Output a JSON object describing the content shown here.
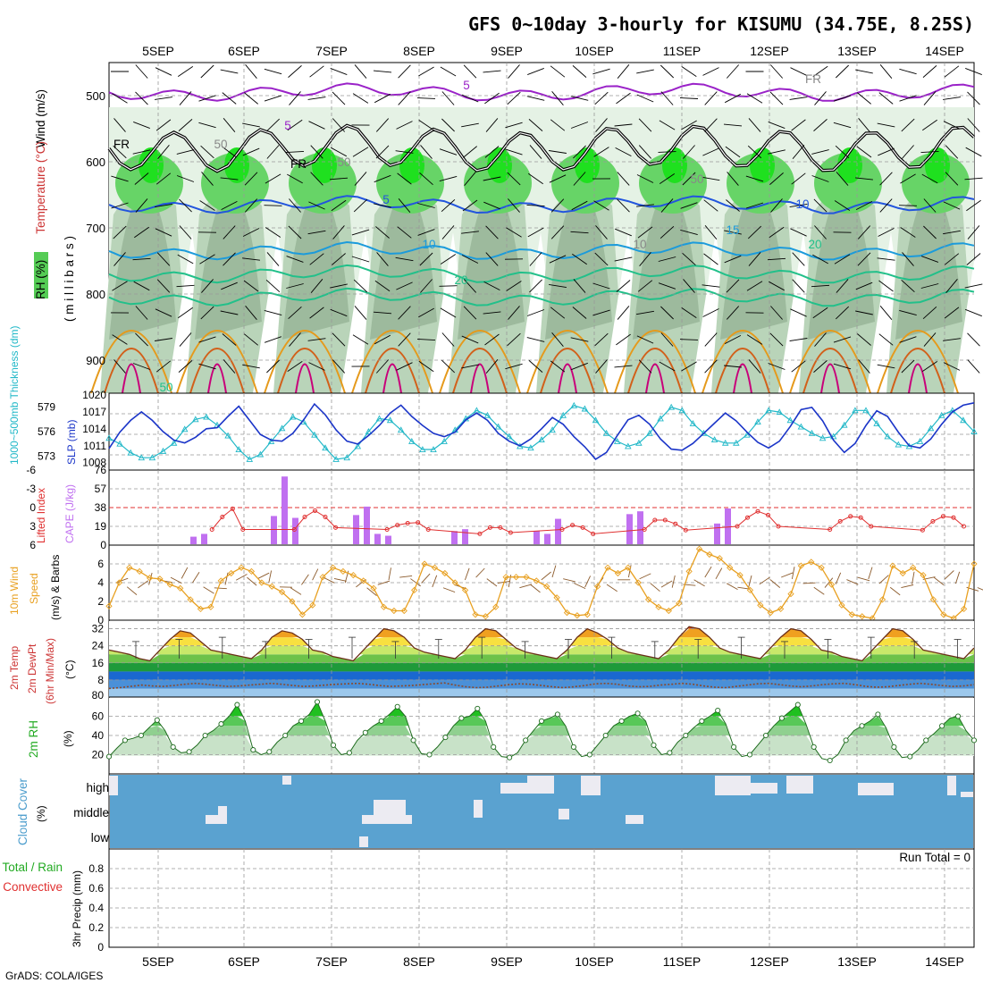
{
  "title": "GFS 0~10day 3-hourly for KISUMU (34.75E, 8.25S)",
  "credit": "GrADS: COLA/IGES",
  "colors": {
    "rh_light": "#e5f2e5",
    "rh_mid": "#b9d4b9",
    "rh_dark": "#8aa88a",
    "rh_green": "#67d467",
    "rh_bright": "#1fe01f",
    "temp_purple": "#9a22c8",
    "temp_blue": "#2255dd",
    "temp_lightblue": "#1c9bdb",
    "temp_teal": "#22c08a",
    "temp_orange": "#e59a1c",
    "temp_dark_orange": "#d2601a",
    "temp_magenta": "#c8007a",
    "freezing": "#000000",
    "thickness": "#22b8c8",
    "slp": "#1b35c8",
    "lifted_index": "#e03030",
    "cape": "#c070f0",
    "wind_speed": "#e8a020",
    "wind_barb": "#8b5a2b",
    "temp_line": "#6b2f18",
    "dewpt_line": "#8b4a2b",
    "cloud": "#5aa2d0",
    "clear_sky": "#ecebf2",
    "precip_total": "#22aa22",
    "precip_convective": "#e03030"
  },
  "time_axis": {
    "dates": [
      "5SEP",
      "6SEP",
      "7SEP",
      "8SEP",
      "9SEP",
      "10SEP",
      "11SEP",
      "12SEP",
      "13SEP",
      "14SEP"
    ]
  },
  "panels": {
    "upper_air": {
      "label_wind": "Wind (m/s)",
      "label_temperature": "Temperature (°C)",
      "label_rh": "RH (%)",
      "label_pressure": "( m i l l i b a r s )",
      "contour_labels": [
        "5",
        "5",
        "5",
        "10",
        "10",
        "15",
        "20",
        "20",
        "50",
        "50",
        "50",
        "50",
        "10",
        "FR",
        "FR",
        "FR"
      ]
    },
    "thickness_slp": {
      "label_thickness": "1000~500mb Thickness (dm)",
      "label_slp": "SLP (mb)"
    },
    "instability": {
      "label_li": "Lifted Index",
      "label_cape": "CAPE (J/kg)"
    },
    "wind10m": {
      "label_line1": "10m Wind",
      "label_line2": "Speed",
      "label_line3": "(m/s) & Barbs"
    },
    "temperature": {
      "label_line1": "2m Temp",
      "label_line2": "2m DewPt",
      "label_line3": "(6hr Min/Max)",
      "unit": "(°C)"
    },
    "rh2m": {
      "label": "2m RH",
      "unit": "(%)"
    },
    "cloud": {
      "label": "Cloud Cover",
      "unit": "(%)",
      "levels": [
        "high",
        "middle",
        "low"
      ]
    },
    "precip": {
      "label_total": "Total / Rain",
      "label_convective": "Convective",
      "label_axis": "3hr Precip (mm)",
      "run_total": "Run Total = 0"
    }
  },
  "chart_data": [
    {
      "type": "contour",
      "panel": "upper_air",
      "ylabel": "(millibars)",
      "y_ticks": [
        500,
        600,
        700,
        800,
        900
      ],
      "ylim": [
        450,
        950
      ],
      "contours": [
        {
          "field": "temperature",
          "level": -5,
          "mean_pressure": 495
        },
        {
          "field": "temperature",
          "level": 0,
          "mean_pressure": 580
        },
        {
          "field": "temperature",
          "level": 5,
          "mean_pressure": 665
        },
        {
          "field": "temperature",
          "level": 10,
          "mean_pressure": 735
        },
        {
          "field": "temperature",
          "level": 15,
          "mean_pressure": 770
        },
        {
          "field": "temperature",
          "level": 20,
          "mean_pressure": 805
        }
      ]
    },
    {
      "type": "line",
      "panel": "thickness_slp",
      "series": [
        {
          "name": "1000~500mb Thickness (dm)",
          "axis": "left",
          "y_ticks": [
            573,
            576,
            579
          ],
          "values": [
            575.2,
            574.5,
            573.4,
            572.8,
            572.8,
            573.6,
            574.6,
            576.3,
            577.5,
            577.8,
            576.8,
            575.5,
            573.8,
            572.6,
            573.2,
            574.8,
            576.4,
            577.8,
            577.2,
            575.6,
            574.0,
            572.6,
            572.8,
            574.2,
            576.0,
            577.6,
            577.4,
            576.2,
            574.8,
            573.8,
            573.8,
            574.8,
            576.2,
            577.6,
            578.6,
            578.0,
            576.6,
            575.4,
            574.2,
            574.0,
            575.0,
            576.2,
            578.0,
            579.2,
            578.8,
            577.4,
            575.8,
            574.8,
            574.2,
            574.6,
            575.8,
            577.6,
            579.0,
            578.6,
            577.0,
            575.8,
            575.0,
            574.6,
            574.6,
            575.6,
            577.2,
            578.6,
            578.4,
            577.4,
            576.6,
            575.8,
            575.2,
            575.4,
            576.8,
            578.6,
            578.6,
            577.0,
            575.4,
            574.4,
            574.2,
            574.8,
            576.4,
            578.0,
            578.6,
            577.4,
            576.0
          ]
        },
        {
          "name": "SLP (mb)",
          "axis": "right",
          "y_ticks": [
            1008,
            1011,
            1014,
            1017,
            1020
          ],
          "values": [
            1010.5,
            1013.4,
            1015.5,
            1017.0,
            1015.5,
            1013.5,
            1012.0,
            1011.5,
            1012.5,
            1014.0,
            1014.2,
            1016.2,
            1018.0,
            1015.5,
            1013.0,
            1012.0,
            1011.8,
            1013.2,
            1015.6,
            1018.4,
            1016.5,
            1013.8,
            1011.8,
            1011.3,
            1012.8,
            1014.6,
            1016.8,
            1018.2,
            1016.2,
            1014.6,
            1013.2,
            1012.6,
            1013.4,
            1015.6,
            1016.8,
            1015.5,
            1013.2,
            1011.8,
            1011.0,
            1012.2,
            1014.0,
            1016.0,
            1014.8,
            1012.6,
            1010.8,
            1008.6,
            1009.8,
            1012.8,
            1015.6,
            1016.4,
            1014.8,
            1012.2,
            1010.4,
            1010.2,
            1011.4,
            1013.2,
            1015.0,
            1016.8,
            1015.4,
            1013.4,
            1011.6,
            1010.6,
            1011.8,
            1014.4,
            1017.4,
            1017.8,
            1015.4,
            1012.0,
            1009.8,
            1011.4,
            1014.6,
            1017.2,
            1016.2,
            1013.4,
            1011.0,
            1010.6,
            1012.2,
            1014.8,
            1017.0,
            1018.2,
            1018.6
          ]
        }
      ]
    },
    {
      "type": "bar+line",
      "panel": "instability",
      "series": [
        {
          "name": "Lifted Index",
          "axis": "left",
          "y_ticks": [
            -6,
            -3,
            0,
            3,
            6
          ],
          "values": [
            null,
            null,
            null,
            null,
            null,
            null,
            null,
            null,
            null,
            null,
            3.5,
            1.5,
            0.2,
            3.5,
            null,
            null,
            null,
            null,
            3.5,
            1.5,
            0.5,
            1.5,
            3.2,
            null,
            null,
            null,
            null,
            3.5,
            2.8,
            2.5,
            2.4,
            3.5,
            null,
            null,
            null,
            null,
            4.2,
            3.2,
            3.2,
            4.0,
            null,
            null,
            null,
            null,
            3.5,
            2.8,
            3.2,
            4.2,
            null,
            null,
            null,
            null,
            3.5,
            2.0,
            2.0,
            2.6,
            3.6,
            null,
            null,
            null,
            null,
            3.0,
            1.6,
            0.6,
            1.2,
            3.0,
            null,
            null,
            null,
            null,
            3.5,
            2.2,
            1.4,
            1.6,
            3.0,
            null,
            null,
            null,
            null,
            3.6,
            2.2,
            1.4,
            1.6,
            3.0,
            null
          ]
        },
        {
          "name": "CAPE (J/kg)",
          "axis": "right",
          "y_ticks": [
            0,
            19,
            38,
            57,
            76
          ],
          "bars": [
            {
              "day": "5SEP",
              "values": [
                8,
                11
              ]
            },
            {
              "day": "6SEP",
              "values": [
                30,
                72,
                28
              ]
            },
            {
              "day": "7SEP",
              "values": [
                31,
                40,
                11,
                9
              ]
            },
            {
              "day": "8SEP",
              "values": [
                14,
                16
              ]
            },
            {
              "day": "9SEP",
              "values": [
                14,
                11,
                27
              ]
            },
            {
              "day": "10SEP",
              "values": [
                32,
                35
              ]
            },
            {
              "day": "11SEP",
              "values": [
                22,
                38
              ]
            }
          ]
        }
      ]
    },
    {
      "type": "line",
      "panel": "wind10m",
      "y_ticks": [
        0,
        2,
        4,
        6
      ],
      "values": [
        1.5,
        4.0,
        5.6,
        5.2,
        4.5,
        4.4,
        3.8,
        3.4,
        2.2,
        1.2,
        1.4,
        4.2,
        5.0,
        5.6,
        5.2,
        4.0,
        3.6,
        3.0,
        2.0,
        0.6,
        1.6,
        4.6,
        5.6,
        5.2,
        4.8,
        4.2,
        3.4,
        1.4,
        1.0,
        1.0,
        3.2,
        6.0,
        5.6,
        5.0,
        4.0,
        3.2,
        0.6,
        0.4,
        1.4,
        4.6,
        4.6,
        4.6,
        4.2,
        3.6,
        2.4,
        0.8,
        0.5,
        0.6,
        3.6,
        5.6,
        5.0,
        5.6,
        4.0,
        2.2,
        1.4,
        1.0,
        1.8,
        5.2,
        7.6,
        7.0,
        6.6,
        5.6,
        4.8,
        3.2,
        1.6,
        0.8,
        1.2,
        2.8,
        5.8,
        6.2,
        5.6,
        3.8,
        1.6,
        0.6,
        0.4,
        0.2,
        2.2,
        5.8,
        5.0,
        5.6,
        4.8,
        2.2,
        0.6,
        0.2,
        1.2,
        6.0
      ]
    },
    {
      "type": "area",
      "panel": "temperature",
      "ylabel": "(°C)",
      "y_ticks": [
        8,
        16,
        24,
        32
      ],
      "series": [
        {
          "name": "2m Temp",
          "values": [
            22,
            21,
            20,
            18,
            17,
            22,
            27,
            31,
            30,
            26,
            22,
            21,
            20,
            19,
            18,
            22,
            28,
            31,
            30,
            27,
            22,
            21,
            19,
            18,
            17,
            22,
            27,
            32,
            31,
            28,
            23,
            21,
            20,
            19,
            18,
            22,
            28,
            32,
            31,
            27,
            23,
            21,
            20,
            19,
            18,
            22,
            28,
            32,
            30,
            27,
            23,
            21,
            20,
            19,
            18,
            22,
            28,
            33,
            32,
            28,
            23,
            21,
            20,
            19,
            18,
            23,
            28,
            32,
            31,
            27,
            22,
            21,
            19,
            18,
            17,
            22,
            27,
            32,
            31,
            27,
            22,
            21,
            20,
            19,
            18,
            23
          ]
        },
        {
          "name": "2m DewPt",
          "values": [
            4.0,
            4.4,
            5.0,
            5.6,
            5.2,
            5.0,
            5.4,
            6.0,
            6.4,
            6.0,
            5.4,
            5.0,
            5.2,
            5.6,
            6.0,
            6.4,
            6.0,
            5.4,
            5.0,
            5.2,
            5.6,
            6.0,
            6.2,
            6.4,
            6.0,
            5.4,
            5.0,
            5.2,
            5.4,
            5.8,
            6.2,
            6.6,
            5.6,
            4.8,
            4.4,
            4.6,
            5.2,
            5.8,
            6.2,
            6.0,
            5.4,
            4.8,
            4.4,
            4.8,
            5.4,
            6.2,
            6.4,
            6.0,
            5.2,
            4.8,
            5.0,
            5.6,
            6.0,
            6.4,
            6.0,
            5.2,
            4.6,
            4.4,
            5.0,
            5.6,
            6.2,
            6.4,
            5.8,
            5.2,
            4.8,
            5.2,
            5.8,
            6.2,
            6.4,
            5.8,
            5.0,
            4.6,
            4.8,
            5.4,
            6.0,
            6.4,
            6.0,
            5.4,
            5.0,
            5.2,
            5.8
          ]
        }
      ]
    },
    {
      "type": "area",
      "panel": "rh2m",
      "ylabel": "(%)",
      "y_ticks": [
        20,
        40,
        60
      ],
      "values": [
        18,
        27,
        35,
        37,
        40,
        48,
        56,
        45,
        28,
        22,
        23,
        30,
        40,
        45,
        52,
        60,
        72,
        55,
        25,
        20,
        23,
        33,
        40,
        50,
        55,
        62,
        75,
        55,
        30,
        20,
        22,
        35,
        43,
        50,
        55,
        62,
        70,
        60,
        35,
        21,
        20,
        28,
        38,
        50,
        58,
        60,
        68,
        55,
        28,
        18,
        17,
        22,
        35,
        45,
        55,
        58,
        62,
        50,
        28,
        18,
        20,
        30,
        40,
        50,
        55,
        60,
        63,
        55,
        30,
        20,
        22,
        33,
        40,
        48,
        55,
        60,
        66,
        52,
        28,
        18,
        20,
        30,
        40,
        50,
        58,
        65,
        72,
        52,
        28,
        16,
        14,
        20,
        35,
        45,
        50,
        55,
        62,
        48,
        28,
        17,
        18,
        25,
        35,
        42,
        50,
        58,
        60,
        45,
        35
      ]
    },
    {
      "type": "heatmap",
      "panel": "cloud",
      "levels": [
        "high",
        "middle",
        "low"
      ],
      "note": "cloud cover mostly overcast at all levels"
    },
    {
      "type": "bar",
      "panel": "precip",
      "ylabel": "3hr Precip (mm)",
      "y_ticks": [
        0,
        0.2,
        0.4,
        0.6,
        0.8
      ],
      "ylim": [
        0,
        1
      ],
      "values": []
    }
  ]
}
